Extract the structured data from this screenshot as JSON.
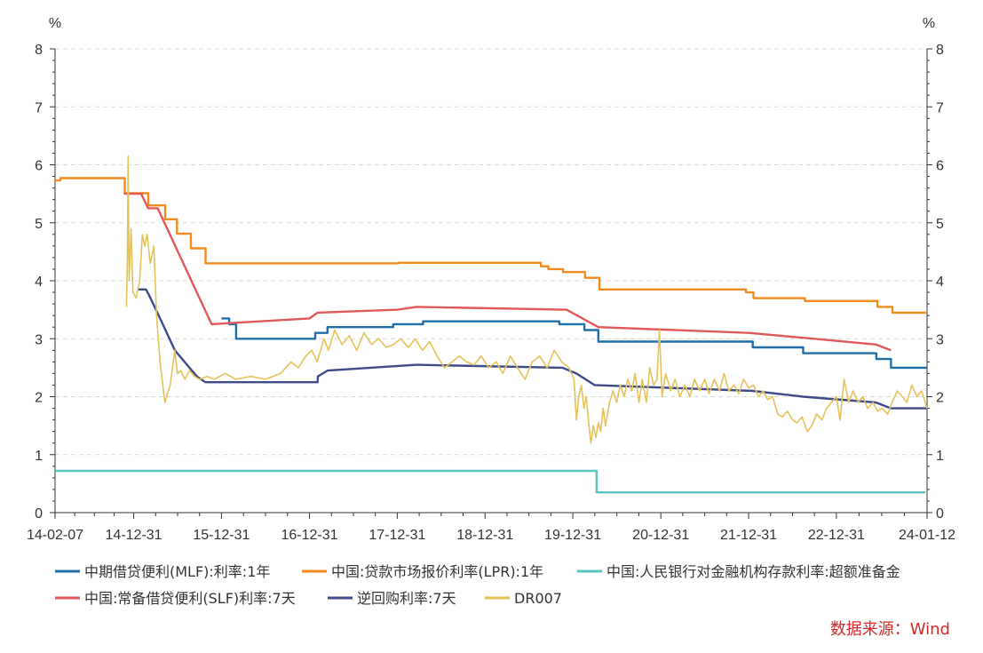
{
  "chart_data": {
    "type": "line",
    "title": "",
    "units": {
      "left": "%",
      "right": "%"
    },
    "x_range": [
      "14-02-07",
      "24-01-12"
    ],
    "x_ticks": [
      "14-02-07",
      "14-12-31",
      "15-12-31",
      "16-12-31",
      "17-12-31",
      "18-12-31",
      "19-12-31",
      "20-12-31",
      "21-12-31",
      "22-12-31",
      "24-01-12"
    ],
    "ylim": [
      0,
      8
    ],
    "y_ticks": [
      "0",
      "1",
      "2",
      "3",
      "4",
      "5",
      "6",
      "7",
      "8"
    ],
    "grid": "horizontal-dashed",
    "legend_position": "bottom",
    "source": "数据来源：Wind",
    "series": [
      {
        "name": "中期借贷便利(MLF):利率:1年",
        "color": "#1f6ea8",
        "step": true,
        "points": [
          [
            "2015-12-31",
            3.35
          ],
          [
            "2016-02-01",
            3.25
          ],
          [
            "2016-03-01",
            3.0
          ],
          [
            "2017-01-24",
            3.1
          ],
          [
            "2017-03-16",
            3.2
          ],
          [
            "2017-12-14",
            3.25
          ],
          [
            "2018-04-17",
            3.3
          ],
          [
            "2019-11-05",
            3.25
          ],
          [
            "2020-02-17",
            3.15
          ],
          [
            "2020-04-15",
            2.95
          ],
          [
            "2022-01-17",
            2.85
          ],
          [
            "2022-08-15",
            2.75
          ],
          [
            "2023-06-15",
            2.65
          ],
          [
            "2023-08-15",
            2.5
          ],
          [
            "2024-01-12",
            2.5
          ]
        ]
      },
      {
        "name": "中国:贷款市场报价利率(LPR):1年",
        "color": "#f28a1e",
        "step": true,
        "points": [
          [
            "2014-02-07",
            5.73
          ],
          [
            "2014-03-01",
            5.77
          ],
          [
            "2014-11-24",
            5.51
          ],
          [
            "2015-03-02",
            5.3
          ],
          [
            "2015-05-11",
            5.06
          ],
          [
            "2015-06-29",
            4.81
          ],
          [
            "2015-08-26",
            4.56
          ],
          [
            "2015-10-26",
            4.3
          ],
          [
            "2018-01-05",
            4.31
          ],
          [
            "2019-08-20",
            4.25
          ],
          [
            "2019-09-20",
            4.2
          ],
          [
            "2019-11-20",
            4.15
          ],
          [
            "2020-02-20",
            4.05
          ],
          [
            "2020-04-20",
            3.85
          ],
          [
            "2021-12-20",
            3.8
          ],
          [
            "2022-01-20",
            3.7
          ],
          [
            "2022-08-22",
            3.65
          ],
          [
            "2023-06-20",
            3.55
          ],
          [
            "2023-08-21",
            3.45
          ],
          [
            "2024-01-12",
            3.45
          ]
        ]
      },
      {
        "name": "中国:人民银行对金融机构存款利率:超额准备金",
        "color": "#5bc4c0",
        "step": true,
        "points": [
          [
            "2014-02-07",
            0.72
          ],
          [
            "2020-04-07",
            0.72
          ],
          [
            "2020-04-08",
            0.35
          ],
          [
            "2024-01-05",
            0.35
          ]
        ]
      },
      {
        "name": "中国:常备借贷便利(SLF)利率:7天",
        "color": "#e0595a",
        "step": false,
        "points": [
          [
            "2014-11-20",
            5.5
          ],
          [
            "2015-01-31",
            5.5
          ],
          [
            "2015-03-01",
            5.25
          ],
          [
            "2015-04-10",
            5.25
          ],
          [
            "2015-11-20",
            3.25
          ],
          [
            "2016-12-31",
            3.35
          ],
          [
            "2017-02-03",
            3.45
          ],
          [
            "2017-12-31",
            3.5
          ],
          [
            "2018-03-22",
            3.55
          ],
          [
            "2019-12-05",
            3.5
          ],
          [
            "2020-04-15",
            3.2
          ],
          [
            "2021-12-31",
            3.1
          ],
          [
            "2022-10-01",
            3.0
          ],
          [
            "2023-06-13",
            2.9
          ],
          [
            "2023-08-15",
            2.8
          ]
        ]
      },
      {
        "name": "逆回购利率:7天",
        "color": "#3e4a8a",
        "step": false,
        "points": [
          [
            "2015-01-15",
            3.85
          ],
          [
            "2015-02-20",
            3.85
          ],
          [
            "2015-03-05",
            3.75
          ],
          [
            "2015-05-01",
            3.25
          ],
          [
            "2015-06-20",
            2.8
          ],
          [
            "2015-08-20",
            2.5
          ],
          [
            "2015-09-20",
            2.35
          ],
          [
            "2015-10-25",
            2.25
          ],
          [
            "2017-02-03",
            2.25
          ],
          [
            "2017-02-04",
            2.35
          ],
          [
            "2017-03-16",
            2.45
          ],
          [
            "2018-03-22",
            2.55
          ],
          [
            "2019-11-18",
            2.5
          ],
          [
            "2020-01-15",
            2.4
          ],
          [
            "2020-03-30",
            2.2
          ],
          [
            "2022-01-17",
            2.1
          ],
          [
            "2022-08-15",
            2.0
          ],
          [
            "2023-06-13",
            1.9
          ],
          [
            "2023-08-15",
            1.8
          ],
          [
            "2024-01-12",
            1.8
          ]
        ]
      },
      {
        "name": "DR007",
        "color": "#e6c25a",
        "step": false,
        "points": [
          [
            "2014-12-01",
            3.55
          ],
          [
            "2014-12-05",
            4.4
          ],
          [
            "2014-12-08",
            6.15
          ],
          [
            "2014-12-12",
            4.0
          ],
          [
            "2014-12-20",
            4.9
          ],
          [
            "2014-12-28",
            3.8
          ],
          [
            "2015-01-10",
            3.7
          ],
          [
            "2015-01-25",
            4.0
          ],
          [
            "2015-02-05",
            4.8
          ],
          [
            "2015-02-15",
            4.6
          ],
          [
            "2015-02-25",
            4.8
          ],
          [
            "2015-03-10",
            4.3
          ],
          [
            "2015-03-25",
            4.6
          ],
          [
            "2015-04-05",
            3.4
          ],
          [
            "2015-04-20",
            2.6
          ],
          [
            "2015-05-01",
            2.2
          ],
          [
            "2015-05-10",
            1.9
          ],
          [
            "2015-05-20",
            2.05
          ],
          [
            "2015-06-01",
            2.2
          ],
          [
            "2015-06-10",
            2.5
          ],
          [
            "2015-06-20",
            2.8
          ],
          [
            "2015-07-01",
            2.4
          ],
          [
            "2015-07-15",
            2.45
          ],
          [
            "2015-08-01",
            2.3
          ],
          [
            "2015-08-20",
            2.45
          ],
          [
            "2015-09-10",
            2.35
          ],
          [
            "2015-10-01",
            2.3
          ],
          [
            "2015-11-01",
            2.35
          ],
          [
            "2015-12-01",
            2.3
          ],
          [
            "2016-01-15",
            2.4
          ],
          [
            "2016-03-01",
            2.3
          ],
          [
            "2016-05-01",
            2.35
          ],
          [
            "2016-07-01",
            2.3
          ],
          [
            "2016-09-01",
            2.4
          ],
          [
            "2016-10-15",
            2.6
          ],
          [
            "2016-11-15",
            2.5
          ],
          [
            "2016-12-15",
            2.7
          ],
          [
            "2017-01-10",
            2.8
          ],
          [
            "2017-02-01",
            2.6
          ],
          [
            "2017-03-01",
            3.0
          ],
          [
            "2017-03-20",
            2.8
          ],
          [
            "2017-04-15",
            3.15
          ],
          [
            "2017-05-15",
            2.9
          ],
          [
            "2017-06-15",
            3.05
          ],
          [
            "2017-07-15",
            2.8
          ],
          [
            "2017-08-15",
            3.1
          ],
          [
            "2017-09-15",
            2.9
          ],
          [
            "2017-10-15",
            3.0
          ],
          [
            "2017-11-15",
            2.85
          ],
          [
            "2017-12-15",
            2.9
          ],
          [
            "2018-01-15",
            3.0
          ],
          [
            "2018-02-15",
            2.85
          ],
          [
            "2018-03-15",
            3.0
          ],
          [
            "2018-04-15",
            2.8
          ],
          [
            "2018-05-15",
            2.95
          ],
          [
            "2018-06-15",
            2.7
          ],
          [
            "2018-07-15",
            2.5
          ],
          [
            "2018-08-15",
            2.6
          ],
          [
            "2018-09-15",
            2.7
          ],
          [
            "2018-10-15",
            2.6
          ],
          [
            "2018-11-15",
            2.55
          ],
          [
            "2018-12-15",
            2.7
          ],
          [
            "2019-01-15",
            2.5
          ],
          [
            "2019-02-15",
            2.6
          ],
          [
            "2019-03-15",
            2.4
          ],
          [
            "2019-04-15",
            2.7
          ],
          [
            "2019-05-15",
            2.5
          ],
          [
            "2019-06-15",
            2.3
          ],
          [
            "2019-07-15",
            2.6
          ],
          [
            "2019-08-15",
            2.7
          ],
          [
            "2019-09-15",
            2.5
          ],
          [
            "2019-10-15",
            2.8
          ],
          [
            "2019-11-15",
            2.6
          ],
          [
            "2019-12-15",
            2.5
          ],
          [
            "2020-01-05",
            2.3
          ],
          [
            "2020-01-15",
            1.6
          ],
          [
            "2020-01-25",
            2.0
          ],
          [
            "2020-02-05",
            2.2
          ],
          [
            "2020-02-15",
            1.8
          ],
          [
            "2020-02-25",
            2.0
          ],
          [
            "2020-03-05",
            1.6
          ],
          [
            "2020-03-15",
            1.2
          ],
          [
            "2020-03-25",
            1.5
          ],
          [
            "2020-04-05",
            1.3
          ],
          [
            "2020-04-15",
            1.55
          ],
          [
            "2020-04-25",
            1.4
          ],
          [
            "2020-05-05",
            1.8
          ],
          [
            "2020-05-15",
            1.5
          ],
          [
            "2020-06-01",
            1.9
          ],
          [
            "2020-06-15",
            2.1
          ],
          [
            "2020-07-01",
            1.9
          ],
          [
            "2020-07-15",
            2.2
          ],
          [
            "2020-08-01",
            2.0
          ],
          [
            "2020-08-15",
            2.3
          ],
          [
            "2020-09-01",
            2.1
          ],
          [
            "2020-09-15",
            2.4
          ],
          [
            "2020-10-01",
            1.9
          ],
          [
            "2020-10-15",
            2.3
          ],
          [
            "2020-11-01",
            1.9
          ],
          [
            "2020-11-15",
            2.5
          ],
          [
            "2020-12-01",
            2.2
          ],
          [
            "2020-12-15",
            2.3
          ],
          [
            "2020-12-25",
            3.15
          ],
          [
            "2021-01-05",
            2.0
          ],
          [
            "2021-01-20",
            2.4
          ],
          [
            "2021-02-10",
            2.1
          ],
          [
            "2021-03-01",
            2.3
          ],
          [
            "2021-03-20",
            2.0
          ],
          [
            "2021-04-10",
            2.2
          ],
          [
            "2021-05-01",
            2.0
          ],
          [
            "2021-05-20",
            2.3
          ],
          [
            "2021-06-10",
            2.1
          ],
          [
            "2021-07-01",
            2.3
          ],
          [
            "2021-07-20",
            2.05
          ],
          [
            "2021-08-10",
            2.3
          ],
          [
            "2021-09-01",
            2.1
          ],
          [
            "2021-09-20",
            2.4
          ],
          [
            "2021-10-10",
            2.1
          ],
          [
            "2021-11-01",
            2.2
          ],
          [
            "2021-11-20",
            2.05
          ],
          [
            "2021-12-10",
            2.3
          ],
          [
            "2021-12-31",
            2.15
          ],
          [
            "2022-01-20",
            2.2
          ],
          [
            "2022-02-10",
            2.0
          ],
          [
            "2022-03-01",
            2.1
          ],
          [
            "2022-03-20",
            1.95
          ],
          [
            "2022-04-10",
            2.0
          ],
          [
            "2022-05-01",
            1.7
          ],
          [
            "2022-05-20",
            1.65
          ],
          [
            "2022-06-10",
            1.75
          ],
          [
            "2022-07-01",
            1.6
          ],
          [
            "2022-07-20",
            1.55
          ],
          [
            "2022-08-10",
            1.65
          ],
          [
            "2022-09-01",
            1.4
          ],
          [
            "2022-09-20",
            1.5
          ],
          [
            "2022-10-10",
            1.7
          ],
          [
            "2022-11-01",
            1.6
          ],
          [
            "2022-11-20",
            1.8
          ],
          [
            "2022-12-10",
            1.9
          ],
          [
            "2022-12-31",
            2.0
          ],
          [
            "2023-01-15",
            1.6
          ],
          [
            "2023-02-01",
            2.3
          ],
          [
            "2023-02-20",
            1.9
          ],
          [
            "2023-03-10",
            2.1
          ],
          [
            "2023-04-01",
            1.9
          ],
          [
            "2023-04-20",
            2.0
          ],
          [
            "2023-05-10",
            1.8
          ],
          [
            "2023-06-01",
            1.9
          ],
          [
            "2023-06-20",
            1.75
          ],
          [
            "2023-07-10",
            1.8
          ],
          [
            "2023-08-01",
            1.7
          ],
          [
            "2023-08-20",
            1.9
          ],
          [
            "2023-09-10",
            2.1
          ],
          [
            "2023-10-01",
            2.0
          ],
          [
            "2023-10-20",
            1.9
          ],
          [
            "2023-11-10",
            2.2
          ],
          [
            "2023-12-01",
            2.0
          ],
          [
            "2023-12-20",
            2.1
          ],
          [
            "2024-01-12",
            1.8
          ]
        ]
      }
    ]
  }
}
